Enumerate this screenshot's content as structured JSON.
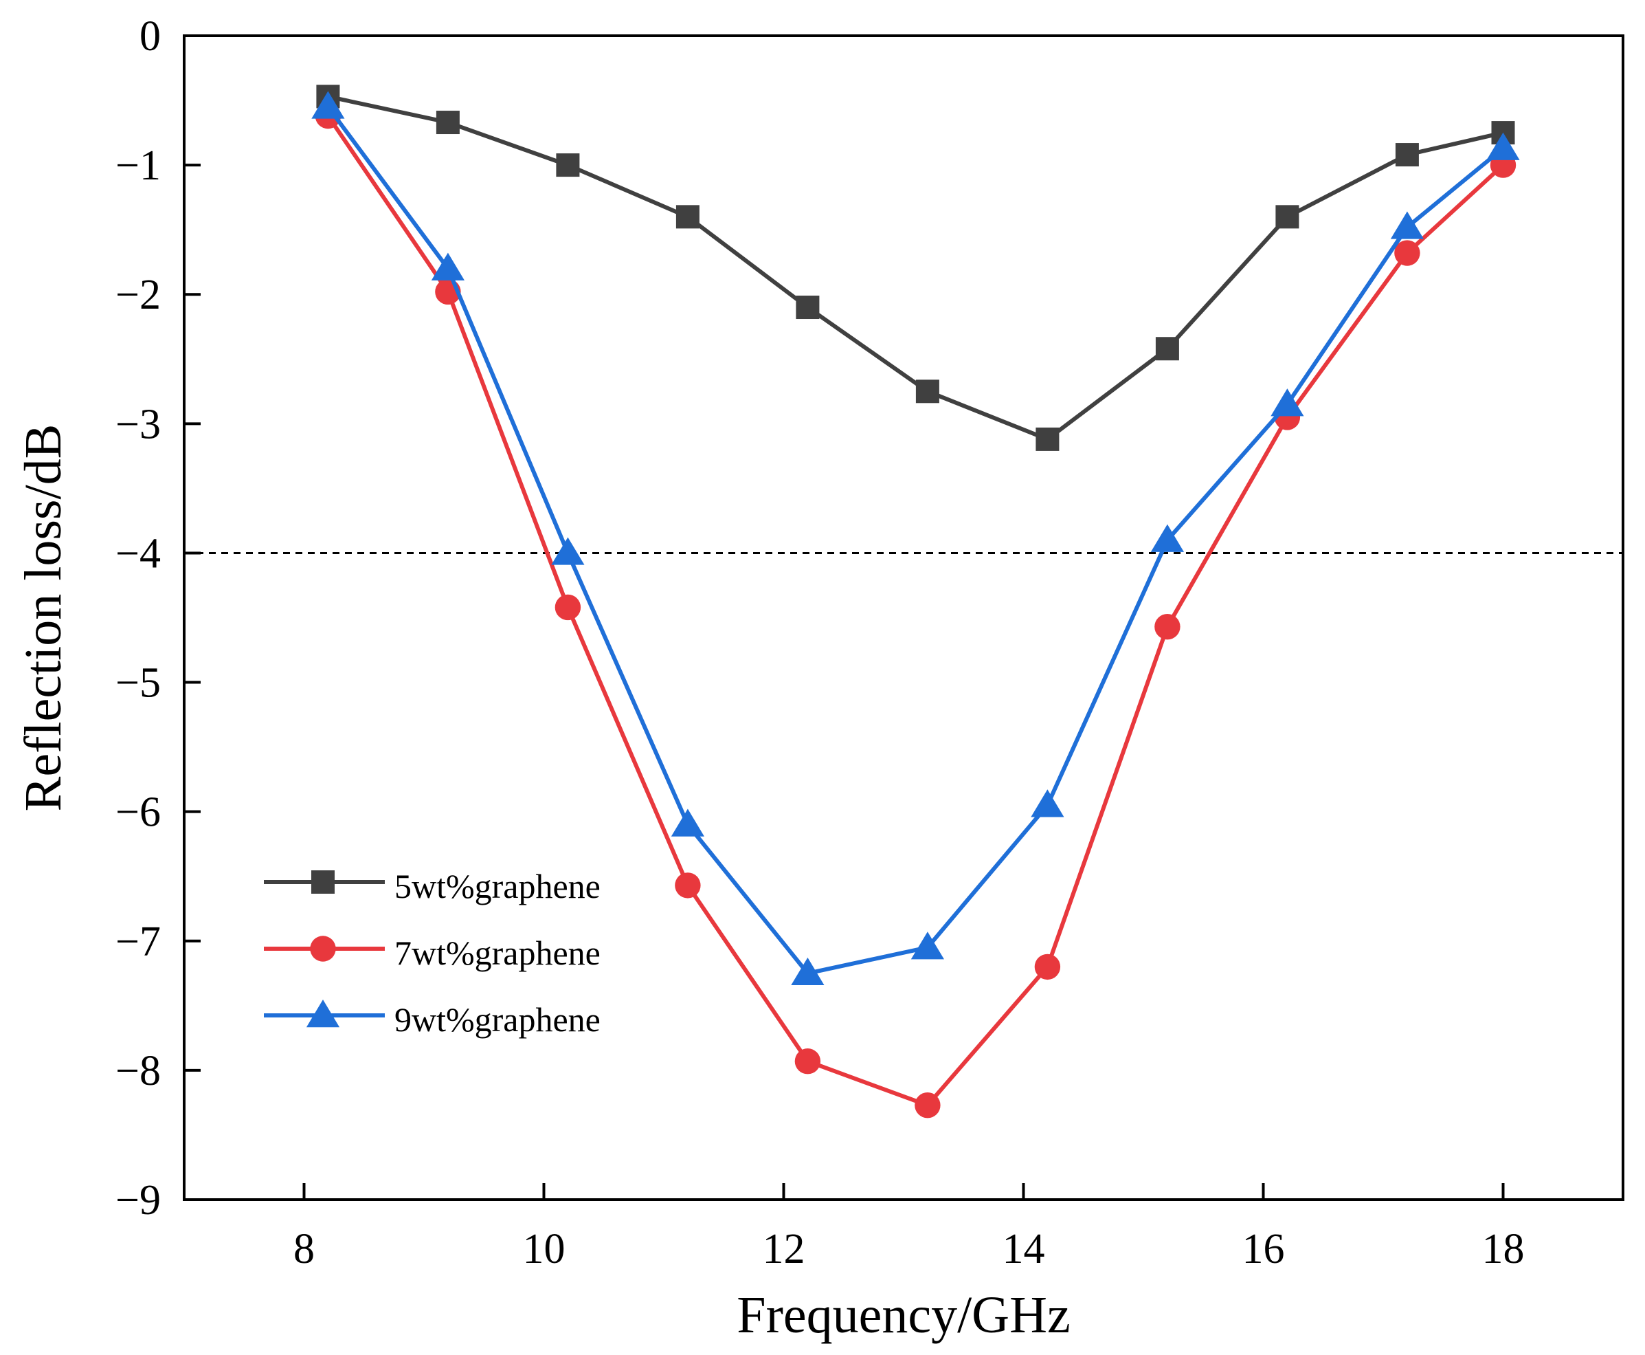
{
  "chart_data": {
    "type": "line",
    "xlabel": "Frequency/GHz",
    "ylabel": "Reflection loss/dB",
    "xlim": [
      7,
      19
    ],
    "ylim": [
      -9,
      0
    ],
    "xticks": [
      8,
      10,
      12,
      14,
      16,
      18
    ],
    "yticks": [
      0,
      -1,
      -2,
      -3,
      -4,
      -5,
      -6,
      -7,
      -8,
      -9
    ],
    "xtick_labels": [
      "8",
      "10",
      "12",
      "14",
      "16",
      "18"
    ],
    "ytick_labels": [
      "0",
      "−1",
      "−2",
      "−3",
      "−4",
      "−5",
      "−6",
      "−7",
      "−8",
      "−9"
    ],
    "reference_line": {
      "y": -4,
      "style": "dashed",
      "color": "#000000"
    },
    "legend_position": "bottom-left",
    "x": [
      8.2,
      9.2,
      10.2,
      11.2,
      12.2,
      13.2,
      14.2,
      15.2,
      16.2,
      17.2,
      18.0
    ],
    "series": [
      {
        "name": "5wt%graphene",
        "marker": "square",
        "color": "#404040",
        "values": [
          -0.47,
          -0.67,
          -1.0,
          -1.4,
          -2.1,
          -2.75,
          -3.12,
          -2.42,
          -1.4,
          -0.92,
          -0.75
        ]
      },
      {
        "name": "7wt%graphene",
        "marker": "circle",
        "color": "#e8383d",
        "values": [
          -0.62,
          -1.98,
          -4.42,
          -6.57,
          -7.93,
          -8.27,
          -7.2,
          -4.57,
          -2.95,
          -1.68,
          -1.0
        ]
      },
      {
        "name": "9wt%graphene",
        "marker": "triangle",
        "color": "#1f6fd8",
        "values": [
          -0.55,
          -1.8,
          -4.0,
          -6.1,
          -7.25,
          -7.05,
          -5.95,
          -3.9,
          -2.85,
          -1.48,
          -0.87
        ]
      }
    ]
  }
}
